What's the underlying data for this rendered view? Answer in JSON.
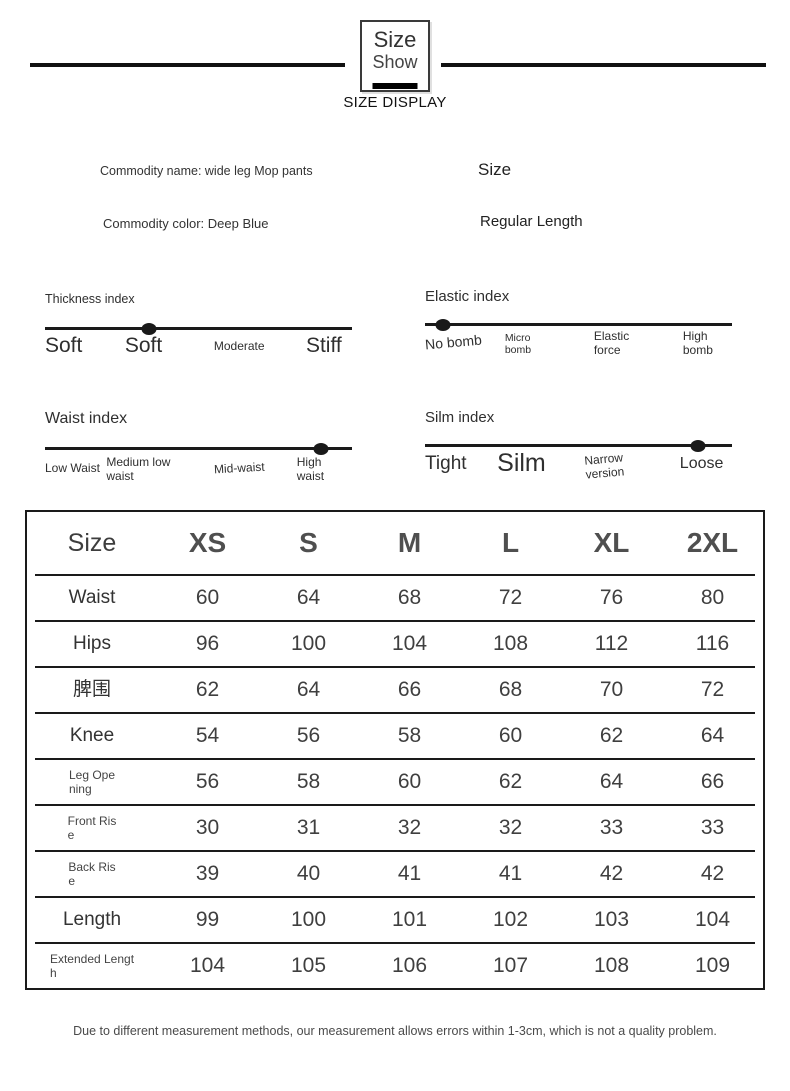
{
  "header": {
    "box_title_line1": "Size",
    "box_title_line2": "Show",
    "caption": "SIZE DISPLAY"
  },
  "product": {
    "name": "Commodity name: wide leg Mop pants",
    "size_title": "Size",
    "color": "Commodity color: Deep Blue",
    "length_type": "Regular Length"
  },
  "indices": {
    "thickness": {
      "title": "Thickness index",
      "dot_pct": 34,
      "labels": [
        "Soft",
        "Soft",
        "Moderate",
        "Stiff"
      ]
    },
    "elastic": {
      "title": "Elastic index",
      "dot_pct": 6,
      "labels": [
        "No bomb",
        "Micro\nbomb",
        "Elastic\nforce",
        "High\nbomb"
      ]
    },
    "waist": {
      "title": "Waist index",
      "dot_pct": 90,
      "labels": [
        "Low Waist",
        "Medium low\nwaist",
        "Mid-waist",
        "High\nwaist"
      ]
    },
    "silm": {
      "title": "Silm index",
      "dot_pct": 89,
      "labels": [
        "Tight",
        "Silm",
        "Narrow\nversion",
        "Loose"
      ]
    }
  },
  "size_table": {
    "columns": [
      "Size",
      "XS",
      "S",
      "M",
      "L",
      "XL",
      "2XL"
    ],
    "rows": [
      {
        "label": "Waist",
        "style": "lg",
        "values": [
          60,
          64,
          68,
          72,
          76,
          80
        ]
      },
      {
        "label": "Hips",
        "style": "lg",
        "values": [
          96,
          100,
          104,
          108,
          112,
          116
        ]
      },
      {
        "label": "脾围",
        "style": "lg",
        "values": [
          62,
          64,
          66,
          68,
          70,
          72
        ]
      },
      {
        "label": "Knee",
        "style": "lg",
        "values": [
          54,
          56,
          58,
          60,
          62,
          64
        ]
      },
      {
        "label": "Leg Ope\nning",
        "style": "sm",
        "values": [
          56,
          58,
          60,
          62,
          64,
          66
        ]
      },
      {
        "label": "Front Ris\ne",
        "style": "sm",
        "values": [
          30,
          31,
          32,
          32,
          33,
          33
        ]
      },
      {
        "label": "Back Ris\ne",
        "style": "sm",
        "values": [
          39,
          40,
          41,
          41,
          42,
          42
        ]
      },
      {
        "label": "Length",
        "style": "lg",
        "values": [
          99,
          100,
          101,
          102,
          103,
          104
        ]
      },
      {
        "label": "Extended Lengt\nh",
        "style": "sm",
        "values": [
          104,
          105,
          106,
          107,
          108,
          109
        ]
      }
    ]
  },
  "footnote": "Due to different measurement methods, our measurement allows errors within 1-3cm, which is not a quality problem."
}
